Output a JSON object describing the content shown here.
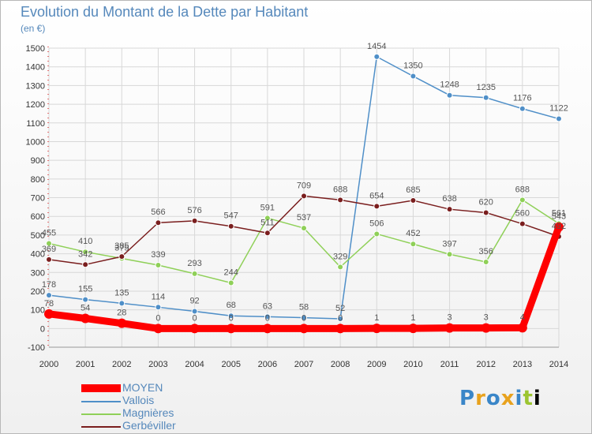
{
  "header": {
    "title": "Evolution du Montant de la Dette par Habitant",
    "unit": "(en €)"
  },
  "logo": {
    "text": "Proxiti"
  },
  "chart_data": {
    "type": "line",
    "title": "Evolution du Montant de la Dette par Habitant",
    "ylabel": "(en €)",
    "xlabel": "",
    "ylim": [
      -100,
      1500
    ],
    "yticks": [
      -100,
      0,
      100,
      200,
      300,
      400,
      500,
      600,
      700,
      800,
      900,
      1000,
      1100,
      1200,
      1300,
      1400,
      1500
    ],
    "x": [
      "2000",
      "2001",
      "2002",
      "2003",
      "2004",
      "2005",
      "2006",
      "2007",
      "2008",
      "2009",
      "2010",
      "2011",
      "2012",
      "2013",
      "2014"
    ],
    "grid": true,
    "legend_position": "bottom-left",
    "series": [
      {
        "name": "MOYEN",
        "color": "#ff0000",
        "values": [
          78,
          54,
          28,
          0,
          0,
          0,
          0,
          0,
          0,
          1,
          1,
          3,
          3,
          4,
          543
        ],
        "labels": [
          "78",
          "54",
          "28",
          "0",
          "0",
          "0",
          "0",
          "0",
          "0",
          "1",
          "1",
          "3",
          "3",
          "4",
          "543"
        ]
      },
      {
        "name": "Vallois",
        "color": "#4f8fc8",
        "values": [
          178,
          155,
          135,
          114,
          92,
          68,
          63,
          58,
          52,
          1454,
          1350,
          1248,
          1235,
          1176,
          1122
        ],
        "labels": [
          "178",
          "155",
          "135",
          "114",
          "92",
          "68",
          "63",
          "58",
          "52",
          "1454",
          "1350",
          "1248",
          "1235",
          "1176",
          "1122"
        ]
      },
      {
        "name": "Magnières",
        "color": "#8fd058",
        "values": [
          455,
          410,
          375,
          339,
          293,
          244,
          591,
          537,
          329,
          506,
          452,
          397,
          356,
          688,
          561
        ],
        "labels": [
          "455",
          "410",
          "375",
          "339",
          "293",
          "244",
          "591",
          "537",
          "329",
          "506",
          "452",
          "397",
          "356",
          "688",
          "561"
        ]
      },
      {
        "name": "Gerbéviller",
        "color": "#7a1e1e",
        "values": [
          369,
          342,
          385,
          566,
          576,
          547,
          511,
          709,
          688,
          654,
          685,
          638,
          620,
          560,
          492
        ],
        "labels": [
          "369",
          "342",
          "385",
          "566",
          "576",
          "547",
          "511",
          "709",
          "688",
          "654",
          "685",
          "638",
          "620",
          "560",
          "492"
        ]
      }
    ]
  }
}
